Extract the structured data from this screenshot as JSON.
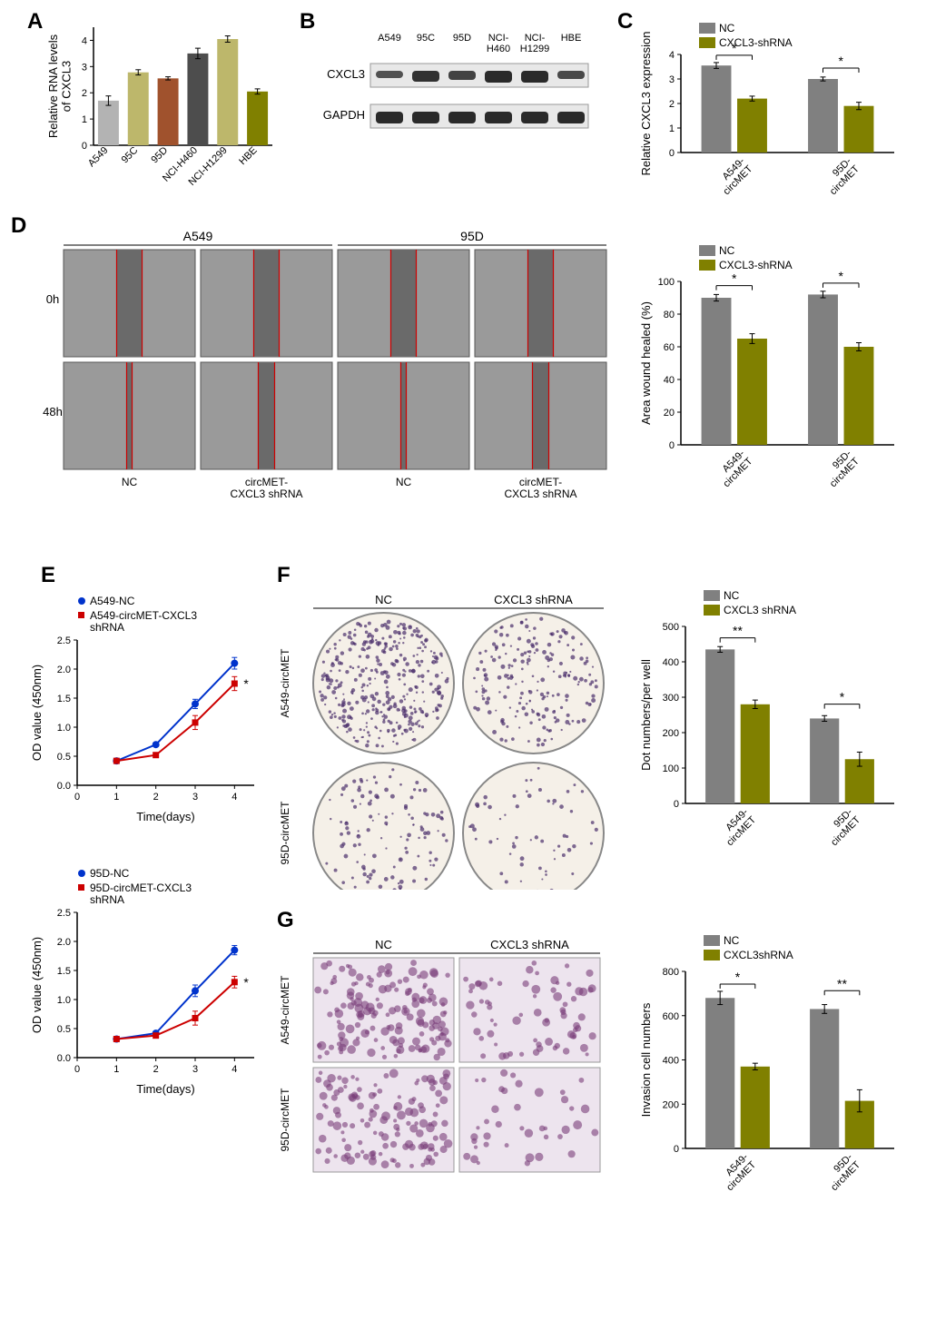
{
  "panels": {
    "A": {
      "label": "A",
      "ylabel": "Relative RNA levels\nof CXCL3",
      "categories": [
        "A549",
        "95C",
        "95D",
        "NCI-H460",
        "NCI-H1299",
        "HBE"
      ],
      "values": [
        1.7,
        2.78,
        2.55,
        3.5,
        4.05,
        2.05
      ],
      "errors": [
        0.18,
        0.1,
        0.06,
        0.2,
        0.12,
        0.1
      ],
      "bar_colors": [
        "#b3b3b3",
        "#bdb76b",
        "#a0522d",
        "#4d4d4d",
        "#bdb76b",
        "#808000"
      ],
      "ylim": [
        0,
        4.5
      ],
      "yticks": [
        0,
        1,
        2,
        3,
        4
      ]
    },
    "B": {
      "label": "B",
      "lanes": [
        "A549",
        "95C",
        "95D",
        "NCI-\nH460",
        "NCI-\nH1299",
        "HBE"
      ],
      "rows": [
        "CXCL3",
        "GAPDH"
      ]
    },
    "C": {
      "label": "C",
      "ylabel": "Relative CXCL3 expression",
      "legend": [
        "NC",
        "CXCL3-shRNA"
      ],
      "legend_colors": [
        "#808080",
        "#808000"
      ],
      "groups": [
        "A549-\ncircMET",
        "95D-\ncircMET"
      ],
      "nc_values": [
        3.55,
        3.0
      ],
      "sh_values": [
        2.2,
        1.9
      ],
      "nc_err": [
        0.12,
        0.08
      ],
      "sh_err": [
        0.1,
        0.15
      ],
      "ylim": [
        0,
        4
      ],
      "yticks": [
        0,
        1,
        2,
        3,
        4
      ],
      "sig": [
        "*",
        "*"
      ]
    },
    "D": {
      "label": "D",
      "col_headers": [
        "A549",
        "95D"
      ],
      "row_headers": [
        "0h",
        "48h"
      ],
      "sub_labels": [
        "NC",
        "circMET-\nCXCL3 shRNA",
        "NC",
        "circMET-\nCXCL3 shRNA"
      ],
      "chart": {
        "ylabel": "Area wound healed (%)",
        "legend": [
          "NC",
          "CXCL3-shRNA"
        ],
        "legend_colors": [
          "#808080",
          "#808000"
        ],
        "groups": [
          "A549-\ncircMET",
          "95D-\ncircMET"
        ],
        "nc_values": [
          90,
          92
        ],
        "sh_values": [
          65,
          60
        ],
        "nc_err": [
          2,
          2
        ],
        "sh_err": [
          3,
          2.5
        ],
        "ylim": [
          0,
          100
        ],
        "yticks": [
          0,
          20,
          40,
          60,
          80,
          100
        ],
        "sig": [
          "*",
          "*"
        ]
      }
    },
    "E": {
      "label": "E",
      "charts": [
        {
          "legend": [
            "A549-NC",
            "A549-circMET-CXCL3\nshRNA"
          ],
          "colors": [
            "#0033cc",
            "#cc0000"
          ],
          "xlabel": "Time(days)",
          "ylabel": "OD value (450nm)",
          "x": [
            1,
            2,
            3,
            4
          ],
          "y_nc": [
            0.42,
            0.7,
            1.4,
            2.1
          ],
          "y_sh": [
            0.42,
            0.52,
            1.08,
            1.75
          ],
          "err_nc": [
            0.02,
            0.03,
            0.08,
            0.1
          ],
          "err_sh": [
            0.02,
            0.03,
            0.12,
            0.12
          ],
          "ylim": [
            0,
            2.5
          ],
          "yticks": [
            0,
            0.5,
            1.0,
            1.5,
            2.0,
            2.5
          ],
          "xlim": [
            0,
            4.5
          ],
          "xticks": [
            0,
            1,
            2,
            3,
            4
          ],
          "sig": "*"
        },
        {
          "legend": [
            "95D-NC",
            "95D-circMET-CXCL3\nshRNA"
          ],
          "colors": [
            "#0033cc",
            "#cc0000"
          ],
          "xlabel": "Time(days)",
          "ylabel": "OD value (450nm)",
          "x": [
            1,
            2,
            3,
            4
          ],
          "y_nc": [
            0.32,
            0.42,
            1.15,
            1.85
          ],
          "y_sh": [
            0.32,
            0.38,
            0.68,
            1.3
          ],
          "err_nc": [
            0.02,
            0.02,
            0.1,
            0.08
          ],
          "err_sh": [
            0.02,
            0.02,
            0.12,
            0.1
          ],
          "ylim": [
            0,
            2.5
          ],
          "yticks": [
            0,
            0.5,
            1.0,
            1.5,
            2.0,
            2.5
          ],
          "xlim": [
            0,
            4.5
          ],
          "xticks": [
            0,
            1,
            2,
            3,
            4
          ],
          "sig": "*"
        }
      ]
    },
    "F": {
      "label": "F",
      "col_headers": [
        "NC",
        "CXCL3 shRNA"
      ],
      "row_headers": [
        "A549-circMET",
        "95D-circMET"
      ],
      "chart": {
        "ylabel": "Dot numbers/per well",
        "legend": [
          "NC",
          "CXCL3 shRNA"
        ],
        "legend_colors": [
          "#808080",
          "#808000"
        ],
        "groups": [
          "A549-\ncircMET",
          "95D-\ncircMET"
        ],
        "nc_values": [
          435,
          240
        ],
        "sh_values": [
          280,
          125
        ],
        "nc_err": [
          8,
          8
        ],
        "sh_err": [
          12,
          20
        ],
        "ylim": [
          0,
          500
        ],
        "yticks": [
          0,
          100,
          200,
          300,
          400,
          500
        ],
        "sig": [
          "**",
          "*"
        ]
      }
    },
    "G": {
      "label": "G",
      "col_headers": [
        "NC",
        "CXCL3 shRNA"
      ],
      "row_headers": [
        "A549-circMET",
        "95D-circMET"
      ],
      "chart": {
        "ylabel": "Invasion cell numbers",
        "legend": [
          "NC",
          "CXCL3shRNA"
        ],
        "legend_colors": [
          "#808080",
          "#808000"
        ],
        "groups": [
          "A549-\ncircMET",
          "95D-\ncircMET"
        ],
        "nc_values": [
          680,
          630
        ],
        "sh_values": [
          370,
          215
        ],
        "nc_err": [
          30,
          20
        ],
        "sh_err": [
          15,
          50
        ],
        "ylim": [
          0,
          800
        ],
        "yticks": [
          0,
          200,
          400,
          600,
          800
        ],
        "sig": [
          "*",
          "**"
        ]
      }
    }
  }
}
